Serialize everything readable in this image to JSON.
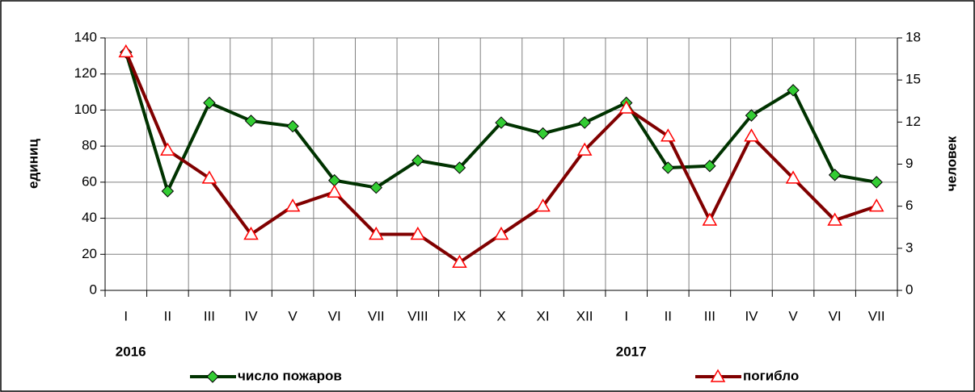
{
  "chart_data": {
    "type": "line",
    "categories": [
      "I",
      "II",
      "III",
      "IV",
      "V",
      "VI",
      "VII",
      "VIII",
      "IX",
      "X",
      "XI",
      "XII",
      "I",
      "II",
      "III",
      "IV",
      "V",
      "VI",
      "VII"
    ],
    "year_labels": [
      "2016",
      "2017"
    ],
    "y_label": "единиц",
    "y2_label": "человек",
    "series": [
      {
        "name": "число пожаров",
        "color": "#003300",
        "marker_color": "#33cc33",
        "marker": "diamond",
        "values": [
          132,
          55,
          104,
          94,
          91,
          61,
          57,
          72,
          68,
          93,
          87,
          93,
          104,
          68,
          69,
          97,
          111,
          64,
          60
        ]
      },
      {
        "name": "погибло",
        "color": "#800000",
        "marker_color": "#ff0000",
        "marker": "triangle",
        "axis": "y2",
        "values": [
          17,
          10,
          8,
          4,
          6,
          7,
          4,
          4,
          2,
          4,
          6,
          10,
          13,
          11,
          5,
          11,
          8,
          5,
          6
        ]
      }
    ],
    "ylim": [
      0,
      140
    ],
    "yticks": [
      0,
      20,
      40,
      60,
      80,
      100,
      120,
      140
    ],
    "y2lim": [
      0,
      18
    ],
    "y2ticks": [
      0,
      3,
      6,
      9,
      12,
      15,
      18
    ],
    "grid": true
  }
}
